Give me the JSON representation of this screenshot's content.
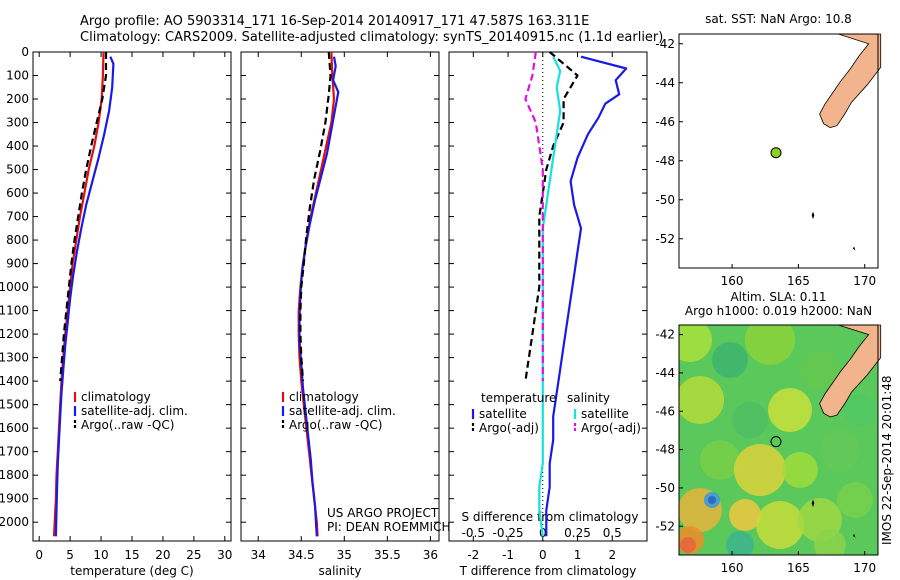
{
  "header": {
    "line1": "Argo profile: AO 5903314_171 16-Sep-2014 20140917_171 47.587S 163.311E",
    "line2": "Climatology: CARS2009. Satellite-adjusted climatology: synTS_20140915.nc (1.1d earlier)"
  },
  "credits": {
    "line1": "US ARGO PROJECT",
    "line2": "PI: DEAN ROEMMICH"
  },
  "timestamp": "IMOS 22-Sep-2014 20:01:48",
  "colors": {
    "climatology": "#e01010",
    "satellite": "#1a1ae6",
    "argo": "#000000",
    "sal_satellite": "#17e0e0",
    "sal_argo": "#e010e0",
    "land": "#f2b48c",
    "marker": "#8cd21e"
  },
  "chart_data": [
    {
      "type": "line",
      "panel": "temperature",
      "xlabel": "temperature (deg C)",
      "xlim": [
        -1,
        31
      ],
      "xticks": [
        0,
        5,
        10,
        15,
        20,
        25,
        30
      ],
      "ylim": [
        2080,
        0
      ],
      "yticks": [
        0,
        100,
        200,
        300,
        400,
        500,
        600,
        700,
        800,
        900,
        1000,
        1100,
        1200,
        1300,
        1400,
        1500,
        1600,
        1700,
        1800,
        1900,
        2000
      ],
      "legend": [
        "climatology",
        "satellite-adj. clim.",
        "Argo(..raw -QC)"
      ],
      "series": [
        {
          "name": "climatology",
          "style": "solid",
          "color": "climatology",
          "points": [
            [
              10.4,
              0
            ],
            [
              10.3,
              100
            ],
            [
              10.1,
              200
            ],
            [
              9.6,
              300
            ],
            [
              8.9,
              400
            ],
            [
              8.0,
              500
            ],
            [
              7.3,
              600
            ],
            [
              6.6,
              700
            ],
            [
              6.0,
              800
            ],
            [
              5.4,
              900
            ],
            [
              5.0,
              1000
            ],
            [
              4.6,
              1100
            ],
            [
              4.2,
              1200
            ],
            [
              3.9,
              1300
            ],
            [
              3.6,
              1400
            ],
            [
              3.4,
              1500
            ],
            [
              3.2,
              1600
            ],
            [
              3.0,
              1700
            ],
            [
              2.8,
              1800
            ],
            [
              2.7,
              1900
            ],
            [
              2.5,
              2000
            ],
            [
              2.4,
              2060
            ]
          ]
        },
        {
          "name": "satellite-adj. clim.",
          "style": "solid",
          "color": "satellite",
          "points": [
            [
              11.5,
              20
            ],
            [
              12.0,
              50
            ],
            [
              11.8,
              150
            ],
            [
              11.3,
              250
            ],
            [
              10.5,
              350
            ],
            [
              9.6,
              450
            ],
            [
              8.6,
              550
            ],
            [
              7.6,
              650
            ],
            [
              6.8,
              750
            ],
            [
              6.1,
              850
            ],
            [
              5.5,
              950
            ],
            [
              5.0,
              1050
            ],
            [
              4.6,
              1150
            ],
            [
              4.2,
              1250
            ],
            [
              3.9,
              1350
            ],
            [
              3.6,
              1450
            ],
            [
              3.4,
              1550
            ],
            [
              3.2,
              1650
            ],
            [
              3.0,
              1750
            ],
            [
              2.9,
              1850
            ],
            [
              2.8,
              1950
            ],
            [
              2.7,
              2060
            ]
          ]
        },
        {
          "name": "Argo(..raw -QC)",
          "style": "dashed",
          "color": "argo",
          "points": [
            [
              10.8,
              0
            ],
            [
              10.8,
              100
            ],
            [
              10.2,
              200
            ],
            [
              9.3,
              300
            ],
            [
              8.4,
              400
            ],
            [
              7.6,
              500
            ],
            [
              6.9,
              600
            ],
            [
              6.3,
              700
            ],
            [
              5.7,
              800
            ],
            [
              5.2,
              900
            ],
            [
              4.8,
              1000
            ],
            [
              4.4,
              1100
            ],
            [
              4.0,
              1200
            ],
            [
              3.7,
              1300
            ],
            [
              3.4,
              1400
            ]
          ]
        }
      ]
    },
    {
      "type": "line",
      "panel": "salinity",
      "xlabel": "salinity",
      "xlim": [
        33.8,
        36.1
      ],
      "xticks": [
        34,
        34.5,
        35,
        35.5,
        36
      ],
      "xticklabels": [
        "34",
        "34.5",
        "35",
        "35.5",
        "36"
      ],
      "ylim": [
        2080,
        0
      ],
      "legend": [
        "climatology",
        "satellite-adj. clim.",
        "Argo(..raw -QC)"
      ],
      "series": [
        {
          "name": "climatology",
          "style": "solid",
          "color": "climatology",
          "points": [
            [
              34.85,
              0
            ],
            [
              34.86,
              100
            ],
            [
              34.88,
              200
            ],
            [
              34.85,
              300
            ],
            [
              34.79,
              400
            ],
            [
              34.73,
              500
            ],
            [
              34.67,
              600
            ],
            [
              34.61,
              700
            ],
            [
              34.56,
              800
            ],
            [
              34.52,
              900
            ],
            [
              34.49,
              1000
            ],
            [
              34.47,
              1100
            ],
            [
              34.47,
              1200
            ],
            [
              34.48,
              1300
            ],
            [
              34.5,
              1400
            ],
            [
              34.53,
              1500
            ],
            [
              34.56,
              1600
            ],
            [
              34.59,
              1700
            ],
            [
              34.62,
              1800
            ],
            [
              34.65,
              1900
            ],
            [
              34.68,
              2000
            ],
            [
              34.69,
              2060
            ]
          ]
        },
        {
          "name": "satellite-adj. clim.",
          "style": "solid",
          "color": "satellite",
          "points": [
            [
              34.88,
              20
            ],
            [
              34.9,
              60
            ],
            [
              34.87,
              120
            ],
            [
              34.93,
              170
            ],
            [
              34.9,
              230
            ],
            [
              34.85,
              330
            ],
            [
              34.8,
              430
            ],
            [
              34.73,
              530
            ],
            [
              34.66,
              630
            ],
            [
              34.6,
              730
            ],
            [
              34.55,
              830
            ],
            [
              34.51,
              930
            ],
            [
              34.49,
              1030
            ],
            [
              34.48,
              1130
            ],
            [
              34.48,
              1230
            ],
            [
              34.5,
              1330
            ],
            [
              34.52,
              1430
            ],
            [
              34.55,
              1530
            ],
            [
              34.58,
              1630
            ],
            [
              34.61,
              1730
            ],
            [
              34.63,
              1830
            ],
            [
              34.66,
              1930
            ],
            [
              34.68,
              2060
            ]
          ]
        },
        {
          "name": "Argo(..raw -QC)",
          "style": "dashed",
          "color": "argo",
          "points": [
            [
              34.82,
              0
            ],
            [
              34.84,
              100
            ],
            [
              34.82,
              180
            ],
            [
              34.78,
              300
            ],
            [
              34.72,
              420
            ],
            [
              34.65,
              540
            ],
            [
              34.6,
              660
            ],
            [
              34.56,
              780
            ],
            [
              34.53,
              900
            ],
            [
              34.5,
              1000
            ],
            [
              34.49,
              1100
            ],
            [
              34.49,
              1200
            ],
            [
              34.5,
              1300
            ],
            [
              34.52,
              1400
            ]
          ]
        }
      ]
    },
    {
      "type": "line",
      "panel": "difference",
      "xlabel": "T difference from climatology",
      "xlabel_top": "S difference from climatology",
      "xlim": [
        -2.7,
        3.0
      ],
      "xticks": [
        -2,
        -1,
        0,
        1,
        2
      ],
      "s_ticks": [
        -0.5,
        -0.25,
        0,
        0.25,
        0.5
      ],
      "s_ticklabels": [
        "-0.5",
        "-0.25",
        "0",
        "0.25",
        "0.5"
      ],
      "s_per_t": 0.25,
      "ylim": [
        2080,
        0
      ],
      "legend_temperature_title": "temperature",
      "legend_salinity_title": "salinity",
      "legend_temperature": [
        "satellite",
        "Argo(-adj)"
      ],
      "legend_salinity": [
        "satellite",
        "Argo(-adj)"
      ],
      "series": [
        {
          "name": "satellite",
          "group": "temperature",
          "style": "solid",
          "color": "satellite",
          "points": [
            [
              1.1,
              20
            ],
            [
              2.4,
              70
            ],
            [
              2.1,
              120
            ],
            [
              2.2,
              180
            ],
            [
              1.8,
              220
            ],
            [
              1.6,
              280
            ],
            [
              1.3,
              350
            ],
            [
              1.0,
              450
            ],
            [
              0.8,
              550
            ],
            [
              0.9,
              650
            ],
            [
              1.1,
              750
            ],
            [
              1.0,
              850
            ],
            [
              0.9,
              950
            ],
            [
              0.8,
              1050
            ],
            [
              0.7,
              1150
            ],
            [
              0.6,
              1250
            ],
            [
              0.5,
              1350
            ],
            [
              0.4,
              1450
            ],
            [
              0.3,
              1550
            ],
            [
              0.3,
              1650
            ],
            [
              0.2,
              1750
            ],
            [
              0.2,
              1850
            ],
            [
              0.1,
              1950
            ],
            [
              0.1,
              2060
            ]
          ]
        },
        {
          "name": "Argo(-adj)",
          "group": "temperature",
          "style": "dashed",
          "color": "argo",
          "points": [
            [
              0.2,
              0
            ],
            [
              1.0,
              100
            ],
            [
              0.6,
              200
            ],
            [
              0.6,
              300
            ],
            [
              0.3,
              400
            ],
            [
              0.1,
              500
            ],
            [
              0.0,
              600
            ],
            [
              -0.1,
              700
            ],
            [
              -0.1,
              800
            ],
            [
              -0.1,
              900
            ],
            [
              -0.1,
              1000
            ],
            [
              -0.2,
              1100
            ],
            [
              -0.3,
              1200
            ],
            [
              -0.4,
              1300
            ],
            [
              -0.5,
              1400
            ]
          ]
        },
        {
          "name": "satellite",
          "group": "salinity",
          "style": "solid",
          "color": "sal_satellite",
          "points": [
            [
              0.3,
              20
            ],
            [
              0.5,
              80
            ],
            [
              0.4,
              150
            ],
            [
              0.5,
              250
            ],
            [
              0.4,
              350
            ],
            [
              0.3,
              450
            ],
            [
              0.2,
              550
            ],
            [
              0.1,
              650
            ],
            [
              0.0,
              750
            ],
            [
              0.0,
              850
            ],
            [
              0.0,
              950
            ],
            [
              0.0,
              1050
            ],
            [
              0.0,
              1150
            ],
            [
              0.0,
              1250
            ],
            [
              0.0,
              1350
            ],
            [
              0.0,
              1450
            ],
            [
              0.0,
              1550
            ],
            [
              0.0,
              1650
            ],
            [
              0.0,
              1750
            ],
            [
              -0.1,
              1850
            ],
            [
              -0.1,
              1950
            ],
            [
              0.0,
              2060
            ]
          ]
        },
        {
          "name": "Argo(-adj)",
          "group": "salinity",
          "style": "dashed",
          "color": "sal_argo",
          "points": [
            [
              -0.2,
              0
            ],
            [
              -0.3,
              100
            ],
            [
              -0.5,
              200
            ],
            [
              -0.2,
              300
            ],
            [
              -0.1,
              400
            ],
            [
              0.0,
              500
            ],
            [
              0.0,
              600
            ],
            [
              0.0,
              700
            ],
            [
              0.0,
              800
            ],
            [
              0.0,
              900
            ],
            [
              0.0,
              1000
            ],
            [
              0.0,
              1100
            ],
            [
              0.0,
              1200
            ],
            [
              0.0,
              1300
            ],
            [
              0.0,
              1400
            ]
          ]
        }
      ]
    }
  ],
  "maps": [
    {
      "id": "sst",
      "title": "sat. SST: NaN Argo: 10.8",
      "xlim": [
        156,
        171
      ],
      "ylim": [
        -53.5,
        -41.5
      ],
      "xticks": [
        160,
        165,
        170
      ],
      "yticks": [
        -42,
        -44,
        -46,
        -48,
        -50,
        -52
      ],
      "profile": [
        163.311,
        -47.587
      ]
    },
    {
      "id": "sla",
      "title_line1": "Altim. SLA: 0.11",
      "title_line2": "Argo h1000: 0.019 h2000: NaN",
      "xlim": [
        156,
        171
      ],
      "ylim": [
        -53.5,
        -41.5
      ],
      "xticks": [
        160,
        165,
        170
      ],
      "yticks": [
        -42,
        -44,
        -46,
        -48,
        -50,
        -52
      ],
      "profile": [
        163.311,
        -47.587
      ]
    }
  ]
}
